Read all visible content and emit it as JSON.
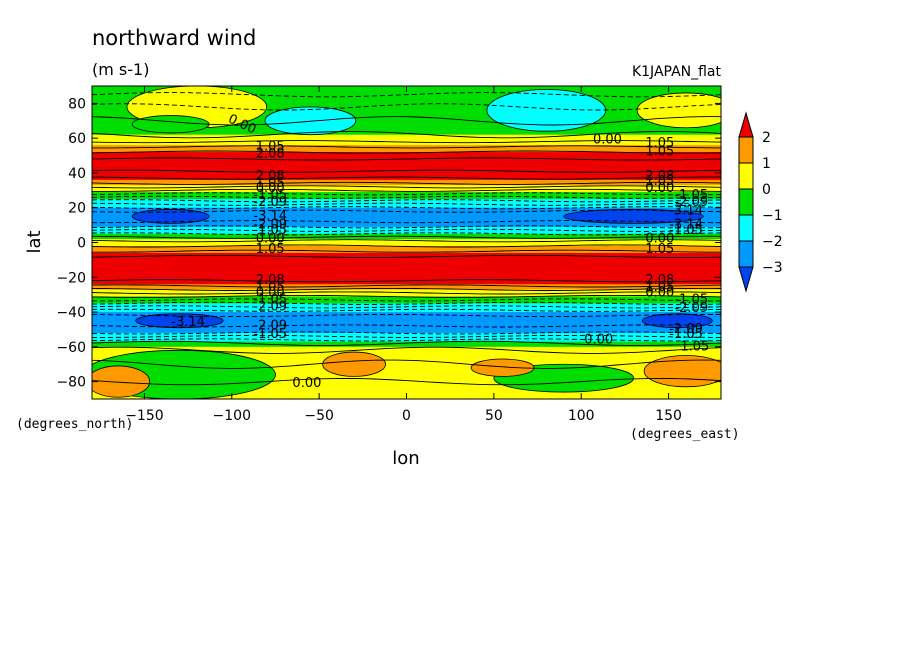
{
  "chart_data": {
    "type": "heatmap",
    "title": "northward wind",
    "units": "(m s-1)",
    "model_label": "K1JAPAN_flat",
    "xlabel": "lon",
    "ylabel": "lat",
    "x_units": "(degrees_east)",
    "y_units": "(degrees_north)",
    "xlim": [
      -180,
      180
    ],
    "ylim": [
      -90,
      90
    ],
    "x_ticks": [
      -150,
      -100,
      -50,
      0,
      50,
      100,
      150
    ],
    "y_ticks": [
      -80,
      -60,
      -40,
      -20,
      0,
      20,
      40,
      60,
      80
    ],
    "colorbar": {
      "levels": [
        2,
        1,
        0,
        -1,
        -2,
        -3
      ],
      "colors": [
        "#ee0000",
        "#ff9900",
        "#ffff00",
        "#00dd00",
        "#00ffff",
        "#0099ff",
        "#0044ee"
      ]
    },
    "lat_bands": [
      {
        "lat_from": 90,
        "lat_to": 62,
        "color": "#00dd00"
      },
      {
        "lat_from": 62,
        "lat_to": 56,
        "color": "#ffff00"
      },
      {
        "lat_from": 56,
        "lat_to": 52,
        "color": "#ff9900"
      },
      {
        "lat_from": 52,
        "lat_to": 36,
        "color": "#ee0000"
      },
      {
        "lat_from": 36,
        "lat_to": 33,
        "color": "#ff9900"
      },
      {
        "lat_from": 33,
        "lat_to": 29,
        "color": "#ffff00"
      },
      {
        "lat_from": 29,
        "lat_to": 25,
        "color": "#00dd00"
      },
      {
        "lat_from": 25,
        "lat_to": 20,
        "color": "#00ffff"
      },
      {
        "lat_from": 20,
        "lat_to": 9,
        "color": "#0099ff"
      },
      {
        "lat_from": 9,
        "lat_to": 5,
        "color": "#00ffff"
      },
      {
        "lat_from": 5,
        "lat_to": 2,
        "color": "#00dd00"
      },
      {
        "lat_from": 2,
        "lat_to": -2,
        "color": "#ffff00"
      },
      {
        "lat_from": -2,
        "lat_to": -6,
        "color": "#ff9900"
      },
      {
        "lat_from": -6,
        "lat_to": -24,
        "color": "#ee0000"
      },
      {
        "lat_from": -24,
        "lat_to": -27,
        "color": "#ff9900"
      },
      {
        "lat_from": -27,
        "lat_to": -31,
        "color": "#ffff00"
      },
      {
        "lat_from": -31,
        "lat_to": -35,
        "color": "#00dd00"
      },
      {
        "lat_from": -35,
        "lat_to": -40,
        "color": "#00ffff"
      },
      {
        "lat_from": -40,
        "lat_to": -52,
        "color": "#0099ff"
      },
      {
        "lat_from": -52,
        "lat_to": -57,
        "color": "#00ffff"
      },
      {
        "lat_from": -57,
        "lat_to": -60,
        "color": "#00dd00"
      },
      {
        "lat_from": -60,
        "lat_to": -90,
        "color": "#ffff00"
      }
    ],
    "blobs": [
      {
        "lon": -120,
        "lat": 78,
        "rlon": 40,
        "rlat": 12,
        "color": "#ffff00"
      },
      {
        "lon": -135,
        "lat": 68,
        "rlon": 22,
        "rlat": 5,
        "color": "#00dd00"
      },
      {
        "lon": -55,
        "lat": 70,
        "rlon": 26,
        "rlat": 8,
        "color": "#00ffff"
      },
      {
        "lon": 80,
        "lat": 76,
        "rlon": 34,
        "rlat": 12,
        "color": "#00ffff"
      },
      {
        "lon": 160,
        "lat": 76,
        "rlon": 28,
        "rlat": 10,
        "color": "#ffff00"
      },
      {
        "lon": -135,
        "lat": 15,
        "rlon": 22,
        "rlat": 4,
        "color": "#0044ee"
      },
      {
        "lon": 130,
        "lat": 15,
        "rlon": 40,
        "rlat": 4,
        "color": "#0044ee"
      },
      {
        "lon": -130,
        "lat": -45,
        "rlon": 25,
        "rlat": 4,
        "color": "#0044ee"
      },
      {
        "lon": 155,
        "lat": -45,
        "rlon": 20,
        "rlat": 4,
        "color": "#0044ee"
      },
      {
        "lon": -130,
        "lat": -76,
        "rlon": 55,
        "rlat": 14,
        "color": "#00dd00"
      },
      {
        "lon": 90,
        "lat": -78,
        "rlon": 40,
        "rlat": 8,
        "color": "#00dd00"
      },
      {
        "lon": -165,
        "lat": -80,
        "rlon": 18,
        "rlat": 9,
        "color": "#ff9900"
      },
      {
        "lon": -30,
        "lat": -70,
        "rlon": 18,
        "rlat": 7,
        "color": "#ff9900"
      },
      {
        "lon": 55,
        "lat": -72,
        "rlon": 18,
        "rlat": 5,
        "color": "#ff9900"
      },
      {
        "lon": 160,
        "lat": -74,
        "rlon": 24,
        "rlat": 9,
        "color": "#ff9900"
      }
    ],
    "contour_lats": [
      {
        "lat": 85,
        "dashed": true,
        "wobble": 2
      },
      {
        "lat": 78,
        "dashed": true,
        "wobble": 3
      },
      {
        "lat": 70,
        "dashed": false,
        "wobble": 4
      },
      {
        "lat": 62,
        "dashed": false,
        "wobble": 3
      },
      {
        "lat": 58,
        "dashed": false,
        "wobble": 1
      },
      {
        "lat": 55,
        "dashed": false,
        "wobble": 1
      },
      {
        "lat": 52,
        "dashed": false,
        "wobble": 1
      },
      {
        "lat": 48,
        "dashed": false,
        "wobble": 1
      },
      {
        "lat": 41,
        "dashed": false,
        "wobble": 1
      },
      {
        "lat": 37,
        "dashed": false,
        "wobble": 1
      },
      {
        "lat": 34,
        "dashed": false,
        "wobble": 1
      },
      {
        "lat": 32,
        "dashed": false,
        "wobble": 1
      },
      {
        "lat": 30,
        "dashed": false,
        "wobble": 1
      },
      {
        "lat": 28,
        "dashed": true,
        "wobble": 1
      },
      {
        "lat": 26,
        "dashed": true,
        "wobble": 1
      },
      {
        "lat": 24,
        "dashed": true,
        "wobble": 1
      },
      {
        "lat": 22,
        "dashed": true,
        "wobble": 1
      },
      {
        "lat": 20,
        "dashed": true,
        "wobble": 1
      },
      {
        "lat": 18,
        "dashed": true,
        "wobble": 1
      },
      {
        "lat": 12,
        "dashed": true,
        "wobble": 1
      },
      {
        "lat": 9,
        "dashed": true,
        "wobble": 1
      },
      {
        "lat": 7,
        "dashed": true,
        "wobble": 1
      },
      {
        "lat": 5,
        "dashed": true,
        "wobble": 1
      },
      {
        "lat": 3,
        "dashed": false,
        "wobble": 1
      },
      {
        "lat": 1,
        "dashed": false,
        "wobble": 1
      },
      {
        "lat": -2,
        "dashed": false,
        "wobble": 1
      },
      {
        "lat": -5,
        "dashed": false,
        "wobble": 1
      },
      {
        "lat": -8,
        "dashed": false,
        "wobble": 1
      },
      {
        "lat": -22,
        "dashed": false,
        "wobble": 1
      },
      {
        "lat": -25,
        "dashed": false,
        "wobble": 1
      },
      {
        "lat": -27,
        "dashed": false,
        "wobble": 1
      },
      {
        "lat": -29,
        "dashed": false,
        "wobble": 1
      },
      {
        "lat": -31,
        "dashed": false,
        "wobble": 1
      },
      {
        "lat": -33,
        "dashed": true,
        "wobble": 1
      },
      {
        "lat": -35,
        "dashed": true,
        "wobble": 1
      },
      {
        "lat": -37,
        "dashed": true,
        "wobble": 1
      },
      {
        "lat": -39,
        "dashed": true,
        "wobble": 1
      },
      {
        "lat": -42,
        "dashed": true,
        "wobble": 1
      },
      {
        "lat": -48,
        "dashed": true,
        "wobble": 1
      },
      {
        "lat": -52,
        "dashed": true,
        "wobble": 1
      },
      {
        "lat": -54,
        "dashed": true,
        "wobble": 1
      },
      {
        "lat": -56,
        "dashed": true,
        "wobble": 1
      },
      {
        "lat": -58,
        "dashed": false,
        "wobble": 2
      },
      {
        "lat": -62,
        "dashed": false,
        "wobble": 3
      },
      {
        "lat": -70,
        "dashed": false,
        "wobble": 4
      },
      {
        "lat": -80,
        "dashed": false,
        "wobble": 3
      }
    ],
    "contour_labels": [
      {
        "text": "0.00",
        "lon": -95,
        "lat": 66,
        "rotate": 25
      },
      {
        "text": "0.00",
        "lon": 115,
        "lat": 57,
        "rotate": 0
      },
      {
        "text": "1.05",
        "lon": 145,
        "lat": 55,
        "rotate": 0
      },
      {
        "text": "1.05",
        "lon": -78,
        "lat": 53,
        "rotate": 0
      },
      {
        "text": "2.08",
        "lon": -78,
        "lat": 49,
        "rotate": 0
      },
      {
        "text": "1.05",
        "lon": 145,
        "lat": 50,
        "rotate": 0
      },
      {
        "text": "2.08",
        "lon": -78,
        "lat": 36,
        "rotate": 0
      },
      {
        "text": "2.08",
        "lon": 145,
        "lat": 36,
        "rotate": 0
      },
      {
        "text": "1.05",
        "lon": -78,
        "lat": 32,
        "rotate": 0
      },
      {
        "text": "1.05",
        "lon": 145,
        "lat": 33,
        "rotate": 0
      },
      {
        "text": "0.00",
        "lon": -78,
        "lat": 29,
        "rotate": 0
      },
      {
        "text": "0.00",
        "lon": 145,
        "lat": 29,
        "rotate": 0
      },
      {
        "text": "-1.05",
        "lon": -78,
        "lat": 25,
        "rotate": 0
      },
      {
        "text": "-1.05",
        "lon": 163,
        "lat": 25,
        "rotate": 0
      },
      {
        "text": "-2.09",
        "lon": -78,
        "lat": 21,
        "rotate": 0
      },
      {
        "text": "-2.09",
        "lon": 163,
        "lat": 21,
        "rotate": 0
      },
      {
        "text": "-3.14",
        "lon": -78,
        "lat": 13,
        "rotate": 0
      },
      {
        "text": "-3.14",
        "lon": 160,
        "lat": 16,
        "rotate": 0
      },
      {
        "text": "-3.14",
        "lon": 160,
        "lat": 8,
        "rotate": 0
      },
      {
        "text": "-2.09",
        "lon": -78,
        "lat": 8,
        "rotate": 0
      },
      {
        "text": "-1.05",
        "lon": -78,
        "lat": 5,
        "rotate": 0
      },
      {
        "text": "-1.05",
        "lon": 160,
        "lat": 5,
        "rotate": 0
      },
      {
        "text": "0.00",
        "lon": -78,
        "lat": 0,
        "rotate": 0
      },
      {
        "text": "0.00",
        "lon": 145,
        "lat": 0,
        "rotate": 0
      },
      {
        "text": "1.05",
        "lon": -78,
        "lat": -6,
        "rotate": 0
      },
      {
        "text": "1.05",
        "lon": 145,
        "lat": -6,
        "rotate": 0
      },
      {
        "text": "2.08",
        "lon": -78,
        "lat": -24,
        "rotate": 0
      },
      {
        "text": "2.08",
        "lon": 145,
        "lat": -24,
        "rotate": 0
      },
      {
        "text": "1.05",
        "lon": -78,
        "lat": -28,
        "rotate": 0
      },
      {
        "text": "1.05",
        "lon": 145,
        "lat": -28,
        "rotate": 0
      },
      {
        "text": "0.00",
        "lon": -78,
        "lat": -31,
        "rotate": 0
      },
      {
        "text": "0.00",
        "lon": 145,
        "lat": -31,
        "rotate": 0
      },
      {
        "text": "-1.05",
        "lon": -78,
        "lat": -35,
        "rotate": 0
      },
      {
        "text": "-1.05",
        "lon": 163,
        "lat": -35,
        "rotate": 0
      },
      {
        "text": "-2.09",
        "lon": -78,
        "lat": -39,
        "rotate": 0
      },
      {
        "text": "-2.09",
        "lon": 163,
        "lat": -40,
        "rotate": 0
      },
      {
        "text": "-3.14",
        "lon": -125,
        "lat": -48,
        "rotate": 0
      },
      {
        "text": "-2.09",
        "lon": -78,
        "lat": -50,
        "rotate": 0
      },
      {
        "text": "-2.09",
        "lon": 160,
        "lat": -52,
        "rotate": 0
      },
      {
        "text": "-1.05",
        "lon": -78,
        "lat": -55,
        "rotate": 0
      },
      {
        "text": "-1.05",
        "lon": 160,
        "lat": -55,
        "rotate": 0
      },
      {
        "text": "0.00",
        "lon": 110,
        "lat": -58,
        "rotate": 0
      },
      {
        "text": "1.05",
        "lon": 165,
        "lat": -62,
        "rotate": 0
      },
      {
        "text": "0.00",
        "lon": -57,
        "lat": -83,
        "rotate": 0
      }
    ]
  }
}
